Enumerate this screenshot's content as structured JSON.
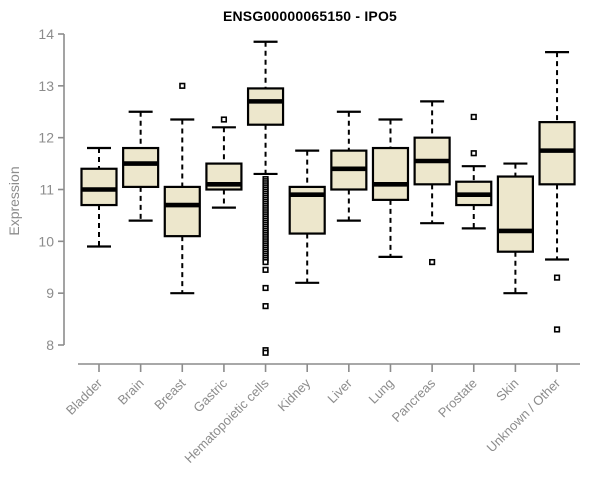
{
  "title": "ENSG00000065150 - IPO5",
  "colors": {
    "background": "#FFFFFF",
    "box_fill": "#EDE7CC",
    "box_border": "#000000",
    "median": "#000000",
    "whisker": "#000000",
    "outlier_border": "#000000",
    "outlier_fill": "#FFFFFF",
    "axis": "#8C8C8C",
    "tick_label": "#8C8C8C",
    "title_color": "#000000"
  },
  "chart_data": {
    "type": "boxplot",
    "title": "ENSG00000065150 - IPO5",
    "xlabel": "",
    "ylabel": "Expression",
    "ylim": [
      8,
      14
    ],
    "yticks": [
      8,
      9,
      10,
      11,
      12,
      13,
      14
    ],
    "grid": false,
    "legend": "none",
    "categories": [
      "Bladder",
      "Brain",
      "Breast",
      "Gastric",
      "Hematopoietic cells",
      "Kidney",
      "Liver",
      "Lung",
      "Pancreas",
      "Prostate",
      "Skin",
      "Unknown / Other"
    ],
    "series": [
      {
        "name": "Bladder",
        "whisker_low": 9.9,
        "q1": 10.7,
        "median": 11.0,
        "q3": 11.4,
        "whisker_high": 11.8,
        "outliers": []
      },
      {
        "name": "Brain",
        "whisker_low": 10.4,
        "q1": 11.05,
        "median": 11.5,
        "q3": 11.8,
        "whisker_high": 12.5,
        "outliers": []
      },
      {
        "name": "Breast",
        "whisker_low": 9.0,
        "q1": 10.1,
        "median": 10.7,
        "q3": 11.05,
        "whisker_high": 12.35,
        "outliers": [
          13.0
        ]
      },
      {
        "name": "Gastric",
        "whisker_low": 10.65,
        "q1": 11.0,
        "median": 11.1,
        "q3": 11.5,
        "whisker_high": 12.2,
        "outliers": [
          12.35
        ]
      },
      {
        "name": "Hematopoietic cells",
        "whisker_low": 11.3,
        "q1": 12.25,
        "median": 12.7,
        "q3": 12.95,
        "whisker_high": 13.85,
        "outliers": [
          11.2,
          11.16,
          11.12,
          11.08,
          11.04,
          11.0,
          10.96,
          10.92,
          10.88,
          10.84,
          10.8,
          10.76,
          10.72,
          10.68,
          10.64,
          10.6,
          10.56,
          10.52,
          10.48,
          10.44,
          10.4,
          10.36,
          10.32,
          10.28,
          10.24,
          10.2,
          10.16,
          10.12,
          10.08,
          10.04,
          10.0,
          9.96,
          9.92,
          9.88,
          9.84,
          9.8,
          9.76,
          9.72,
          9.68,
          9.64,
          9.6,
          9.45,
          9.1,
          8.75,
          7.9,
          7.85
        ]
      },
      {
        "name": "Kidney",
        "whisker_low": 9.2,
        "q1": 10.15,
        "median": 10.9,
        "q3": 11.05,
        "whisker_high": 11.75,
        "outliers": []
      },
      {
        "name": "Liver",
        "whisker_low": 10.4,
        "q1": 11.0,
        "median": 11.4,
        "q3": 11.75,
        "whisker_high": 12.5,
        "outliers": []
      },
      {
        "name": "Lung",
        "whisker_low": 9.7,
        "q1": 10.8,
        "median": 11.1,
        "q3": 11.8,
        "whisker_high": 12.35,
        "outliers": []
      },
      {
        "name": "Pancreas",
        "whisker_low": 10.35,
        "q1": 11.1,
        "median": 11.55,
        "q3": 12.0,
        "whisker_high": 12.7,
        "outliers": [
          9.6
        ]
      },
      {
        "name": "Prostate",
        "whisker_low": 10.25,
        "q1": 10.7,
        "median": 10.9,
        "q3": 11.15,
        "whisker_high": 11.45,
        "outliers": [
          12.4,
          11.7
        ]
      },
      {
        "name": "Skin",
        "whisker_low": 9.0,
        "q1": 9.8,
        "median": 10.2,
        "q3": 11.25,
        "whisker_high": 11.5,
        "outliers": []
      },
      {
        "name": "Unknown / Other",
        "whisker_low": 9.65,
        "q1": 11.1,
        "median": 11.75,
        "q3": 12.3,
        "whisker_high": 13.65,
        "outliers": [
          9.3,
          8.3
        ]
      }
    ]
  }
}
